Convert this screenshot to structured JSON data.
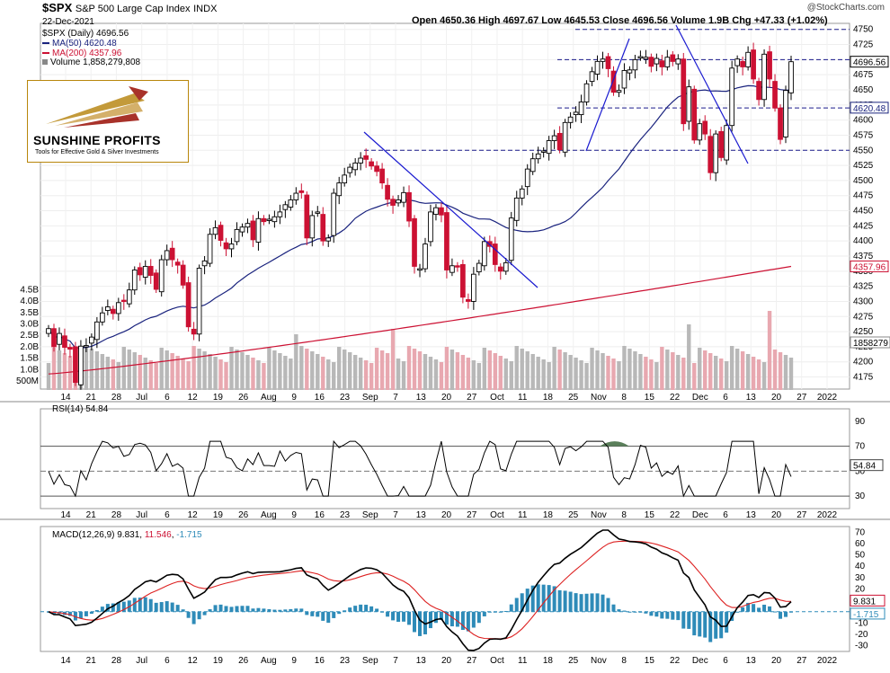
{
  "header": {
    "symbol": "$SPX",
    "name": "S&P 500 Large Cap Index",
    "exchange": "INDX",
    "date": "22-Dec-2021",
    "ohlc": "Open 4650.36  High 4697.67  Low 4645.53  Close 4696.56  Volume 1.9B  Chg +47.33 (+1.02%)",
    "watermark": "@StockCharts.com"
  },
  "legend": {
    "price": "$SPX (Daily) 4696.56",
    "ma50": "MA(50) 4620.48",
    "ma200": "MA(200) 4357.96",
    "volume": "Volume 1,858,279,808"
  },
  "logo": {
    "name": "SUNSHINE PROFITS",
    "tagline": "Tools for Effective Gold & Silver Investments"
  },
  "rsi_label": "RSI(14) 54.84",
  "macd_label": {
    "prefix": "MACD(12,26,9)",
    "macd": "9.831",
    "signal": "11.546",
    "hist": "-1.715"
  },
  "colors": {
    "up": "#000000",
    "down": "#cc1133",
    "ma50": "#1a237e",
    "ma200": "#cc1133",
    "volume_up": "#b8b8b8",
    "volume_down": "#e8a8b0",
    "macd_hist": "#2e8bb8",
    "rsi_fill": "#5a7f5a",
    "trendline": "#1a1ad0",
    "hline": "#1a1a8a"
  },
  "chart_data": {
    "type": "candlestick",
    "price_axis": {
      "ticks": [
        4175,
        4200,
        4225,
        4250,
        4275,
        4300,
        4325,
        4350,
        4375,
        4400,
        4425,
        4450,
        4475,
        4500,
        4525,
        4550,
        4575,
        4600,
        4625,
        4650,
        4675,
        4700,
        4725,
        4750
      ],
      "range": [
        4155,
        4760
      ],
      "value_labels": [
        "4696.56",
        "4620.48",
        "4357.96"
      ]
    },
    "volume_axis": {
      "labels": [
        "500M",
        "1.0B",
        "1.5B",
        "2.0B",
        "2.5B",
        "3.0B",
        "3.5B",
        "4.0B",
        "4.5B"
      ],
      "value_label": "1858279"
    },
    "x_labels": [
      "14",
      "21",
      "28",
      "Jul",
      "6",
      "12",
      "19",
      "26",
      "Aug",
      "9",
      "16",
      "23",
      "Sep",
      "7",
      "13",
      "20",
      "27",
      "Oct",
      "11",
      "18",
      "25",
      "Nov",
      "8",
      "15",
      "22",
      "Dec",
      "6",
      "13",
      "20",
      "27",
      "2022"
    ],
    "horizontal_levels": [
      4750,
      4700,
      4620,
      4550
    ],
    "trendlines": [
      {
        "from": [
          "Sep 2",
          4550
        ],
        "to": [
          "Oct 13",
          4310
        ]
      },
      {
        "from": [
          "Oct 29",
          4540
        ],
        "to": [
          "Nov 5",
          4730
        ]
      },
      {
        "from": [
          "Nov 22",
          4755
        ],
        "to": [
          "Dec 10",
          4515
        ]
      }
    ],
    "close": [
      4255,
      4225,
      4247,
      4224,
      4221,
      4166,
      4226,
      4227,
      4241,
      4266,
      4281,
      4291,
      4280,
      4298,
      4300,
      4319,
      4352,
      4344,
      4358,
      4343,
      4320,
      4369,
      4384,
      4369,
      4360,
      4327,
      4258,
      4246,
      4355,
      4367,
      4411,
      4422,
      4401,
      4387,
      4395,
      4419,
      4423,
      4429,
      4402,
      4437,
      4432,
      4436,
      4440,
      4448,
      4460,
      4468,
      4479,
      4480,
      4405,
      4442,
      4448,
      4400,
      4405,
      4479,
      4496,
      4509,
      4522,
      4529,
      4537,
      4535,
      4524,
      4515,
      4496,
      4469,
      4459,
      4468,
      4480,
      4433,
      4358,
      4354,
      4395,
      4448,
      4455,
      4443,
      4352,
      4359,
      4357,
      4307,
      4300,
      4345,
      4363,
      4399,
      4391,
      4361,
      4350,
      4364,
      4438,
      4471,
      4486,
      4519,
      4536,
      4544,
      4549,
      4566,
      4574,
      4551,
      4596,
      4605,
      4613,
      4630,
      4660,
      4680,
      4697,
      4701,
      4685,
      4646,
      4649,
      4682,
      4683,
      4700,
      4705,
      4704,
      4689,
      4702,
      4688,
      4704,
      4697,
      4701,
      4594,
      4655,
      4567,
      4594,
      4577,
      4513,
      4577,
      4538,
      4591,
      4686,
      4701,
      4688,
      4712,
      4668,
      4634,
      4709,
      4668,
      4620,
      4568,
      4649,
      4696.56
    ],
    "series": [
      {
        "name": "MA(50)",
        "ends": [
          4190,
          4620.48
        ]
      },
      {
        "name": "MA(200)",
        "ends": [
          4180,
          4357.96
        ]
      }
    ],
    "rsi": {
      "ticks": [
        30,
        50,
        70,
        90
      ],
      "levels": [
        30,
        70
      ],
      "value_label": "54.84"
    },
    "macd": {
      "ticks": [
        -30,
        -20,
        -10,
        0,
        10,
        20,
        30,
        40,
        50,
        60,
        70
      ],
      "value_labels": [
        "9.831",
        "-1.715"
      ]
    }
  }
}
